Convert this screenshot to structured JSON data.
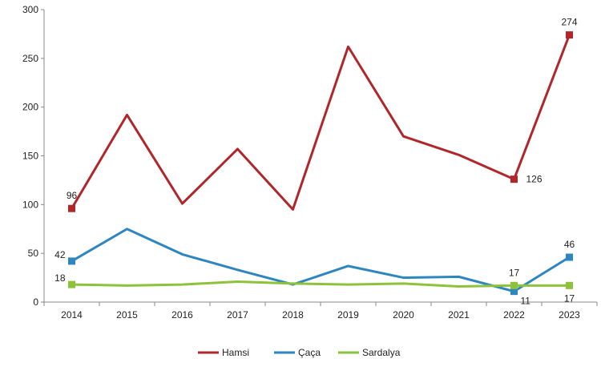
{
  "chart_data": {
    "type": "line",
    "title": "",
    "xlabel": "",
    "ylabel": "",
    "ylim": [
      0,
      300
    ],
    "yticks": [
      0,
      50,
      100,
      150,
      200,
      250,
      300
    ],
    "grid": false,
    "legend_position": "bottom",
    "categories": [
      "2014",
      "2015",
      "2016",
      "2017",
      "2018",
      "2019",
      "2020",
      "2021",
      "2022",
      "2023"
    ],
    "series": [
      {
        "name": "Hamsi",
        "color": "#b0262a",
        "values": [
          96,
          192,
          101,
          157,
          95,
          262,
          170,
          151,
          126,
          274
        ],
        "labels": [
          {
            "index": 0,
            "text": "96",
            "pos": "above"
          },
          {
            "index": 8,
            "text": "126",
            "pos": "right"
          },
          {
            "index": 9,
            "text": "274",
            "pos": "above"
          }
        ]
      },
      {
        "name": "Çaça",
        "color": "#2e86c1",
        "values": [
          42,
          75,
          49,
          33,
          18,
          37,
          25,
          26,
          11,
          46
        ],
        "labels": [
          {
            "index": 0,
            "text": "42",
            "pos": "left"
          },
          {
            "index": 8,
            "text": "11",
            "pos": "belowright"
          },
          {
            "index": 9,
            "text": "46",
            "pos": "above"
          }
        ]
      },
      {
        "name": "Sardalya",
        "color": "#8dc33a",
        "values": [
          18,
          17,
          18,
          21,
          19,
          18,
          19,
          16,
          17,
          17
        ],
        "labels": [
          {
            "index": 0,
            "text": "18",
            "pos": "left"
          },
          {
            "index": 8,
            "text": "17",
            "pos": "above"
          },
          {
            "index": 9,
            "text": "17",
            "pos": "below"
          }
        ]
      }
    ]
  }
}
